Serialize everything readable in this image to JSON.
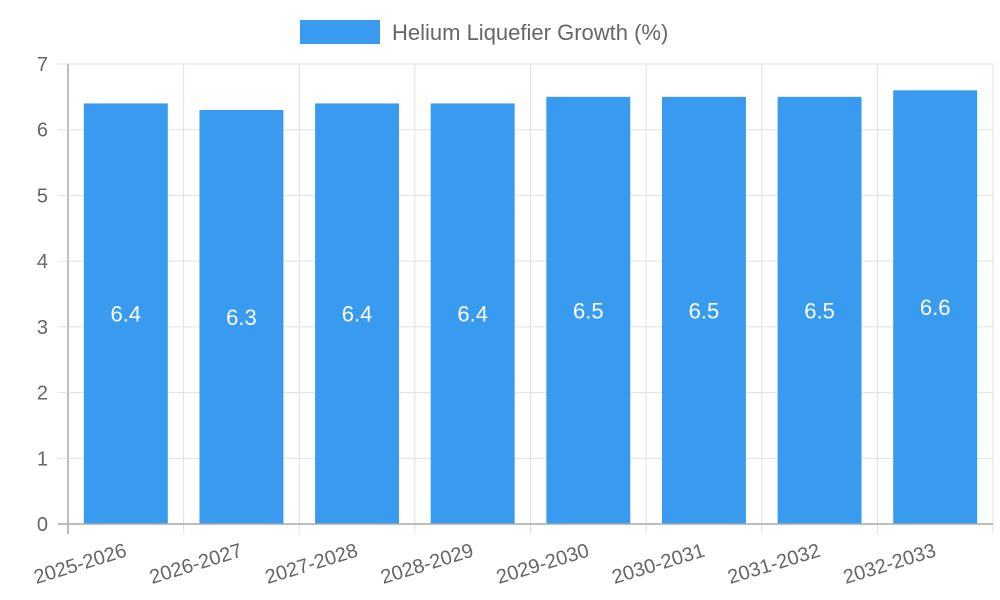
{
  "chart_data": {
    "type": "bar",
    "title": "",
    "xlabel": "",
    "ylabel": "",
    "categories": [
      "2025-2026",
      "2026-2027",
      "2027-2028",
      "2028-2029",
      "2029-2030",
      "2030-2031",
      "2031-2032",
      "2032-2033"
    ],
    "series": [
      {
        "name": "Helium Liquefier Growth (%)",
        "values": [
          6.4,
          6.3,
          6.4,
          6.4,
          6.5,
          6.5,
          6.5,
          6.6
        ],
        "color": "#389bf0"
      }
    ],
    "ylim": [
      0,
      7
    ],
    "yticks": [
      0,
      1,
      2,
      3,
      4,
      5,
      6,
      7
    ],
    "grid": true,
    "legend_position": "top",
    "data_labels": true
  },
  "legend": {
    "label": "Helium Liquefier Growth (%)",
    "color": "#389bf0"
  },
  "colors": {
    "bar": "#389bf0",
    "grid": "#e0e0e0",
    "axis": "#a8a8a8",
    "text": "#666666"
  }
}
